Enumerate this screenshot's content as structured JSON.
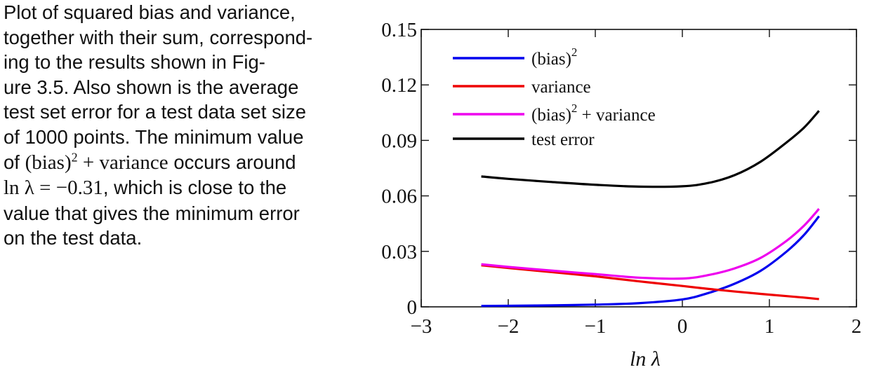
{
  "caption": {
    "line1": "Plot of squared bias and variance,",
    "line2": "together with their sum, correspond-",
    "line3": "ing to the results shown in Fig-",
    "line4": "ure 3.5. Also shown is the average",
    "line5": "test set error for a test data set size",
    "line6": "of 1000 points. The minimum value",
    "line7_a": "of",
    "line7_math": "(bias)",
    "line7_sup": "2",
    "line7_math2": "+ variance",
    "line7_b": "occurs around",
    "line8_math": "ln λ = −0.31",
    "line8_b": ", which is close to the",
    "line9": "value that gives the minimum error",
    "line10": "on the test data."
  },
  "chart_data": {
    "type": "line",
    "xlabel": "ln λ",
    "ylabel": "",
    "xlim": [
      -3,
      2
    ],
    "ylim": [
      0,
      0.15
    ],
    "xticks": [
      -3,
      -2,
      -1,
      0,
      1,
      2
    ],
    "xtick_labels": [
      "−3",
      "−2",
      "−1",
      "0",
      "1",
      "2"
    ],
    "yticks": [
      0,
      0.03,
      0.06,
      0.09,
      0.12,
      0.15
    ],
    "ytick_labels": [
      "0",
      "0.03",
      "0.06",
      "0.09",
      "0.12",
      "0.15"
    ],
    "grid": false,
    "legend_position": "top-left",
    "x": [
      -2.31,
      -2.0,
      -1.5,
      -1.0,
      -0.5,
      0.0,
      0.3,
      0.6,
      0.9,
      1.2,
      1.4,
      1.57
    ],
    "series": [
      {
        "name": "(bias)²",
        "legend_main": "(bias)",
        "legend_sup": "2",
        "legend_tail": "",
        "color": "#0000ee",
        "values": [
          0.0005,
          0.0006,
          0.0008,
          0.0012,
          0.002,
          0.004,
          0.0075,
          0.0125,
          0.0195,
          0.03,
          0.039,
          0.049
        ]
      },
      {
        "name": "variance",
        "legend_main": "variance",
        "legend_sup": "",
        "legend_tail": "",
        "color": "#ee0000",
        "values": [
          0.0225,
          0.021,
          0.0188,
          0.0165,
          0.0138,
          0.0113,
          0.0097,
          0.0083,
          0.007,
          0.0058,
          0.005,
          0.0042
        ]
      },
      {
        "name": "(bias)² + variance",
        "legend_main": "(bias)",
        "legend_sup": "2",
        "legend_tail": " + variance",
        "color": "#ee00ee",
        "values": [
          0.023,
          0.0216,
          0.0196,
          0.0177,
          0.0158,
          0.0153,
          0.0172,
          0.0208,
          0.0265,
          0.0358,
          0.044,
          0.053
        ]
      },
      {
        "name": "test error",
        "legend_main": "test error",
        "legend_sup": "",
        "legend_tail": "",
        "color": "#000000",
        "values": [
          0.0705,
          0.0692,
          0.0675,
          0.066,
          0.065,
          0.0652,
          0.067,
          0.0712,
          0.0785,
          0.089,
          0.097,
          0.106
        ]
      }
    ]
  }
}
